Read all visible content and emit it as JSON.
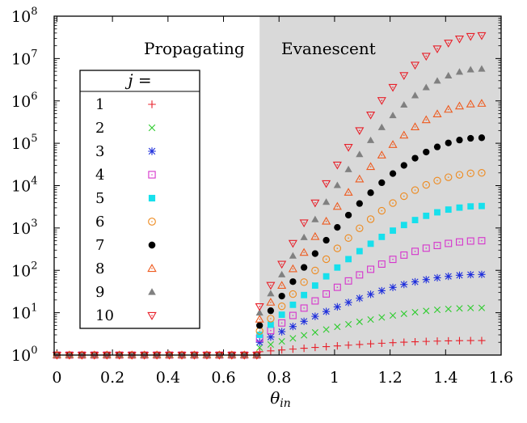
{
  "chart_data": {
    "type": "scatter",
    "title": "",
    "xlabel": "θin",
    "xlabel_main": "θ",
    "xlabel_sub": "in",
    "ylabel": "",
    "xlim": [
      -0.01,
      1.6
    ],
    "ylim_log10": [
      0,
      8
    ],
    "yscale": "log",
    "x_ticks": [
      "0",
      "0.2",
      "0.4",
      "0.6",
      "0.8",
      "1",
      "1.2",
      "1.4",
      "1.6"
    ],
    "y_ticks": [
      {
        "base": "10",
        "exp": "0"
      },
      {
        "base": "10",
        "exp": "1"
      },
      {
        "base": "10",
        "exp": "2"
      },
      {
        "base": "10",
        "exp": "3"
      },
      {
        "base": "10",
        "exp": "4"
      },
      {
        "base": "10",
        "exp": "5"
      },
      {
        "base": "10",
        "exp": "6"
      },
      {
        "base": "10",
        "exp": "7"
      },
      {
        "base": "10",
        "exp": "8"
      }
    ],
    "region_boundary_x": 0.73,
    "regions": [
      {
        "label": "Propagating",
        "fill": "#ffffff"
      },
      {
        "label": "Evanescent",
        "fill": "#d9d9d9"
      }
    ],
    "legend": {
      "title": "j =",
      "title_main": "j",
      "title_rest": " =",
      "placement": "left"
    },
    "propagating_x": [
      0.0,
      0.045,
      0.09,
      0.135,
      0.18,
      0.225,
      0.27,
      0.315,
      0.36,
      0.405,
      0.45,
      0.495,
      0.54,
      0.585,
      0.63,
      0.675,
      0.72
    ],
    "propagating_y": 1,
    "evanescent_x": [
      0.73,
      0.77,
      0.81,
      0.85,
      0.89,
      0.93,
      0.97,
      1.01,
      1.05,
      1.09,
      1.13,
      1.17,
      1.21,
      1.25,
      1.29,
      1.33,
      1.37,
      1.41,
      1.45,
      1.49,
      1.53
    ],
    "series": [
      {
        "name": "1",
        "marker": "plus",
        "color": "#e8202a",
        "jump_value": 1.2,
        "max_value": 2.2
      },
      {
        "name": "2",
        "marker": "cross",
        "color": "#2ecc2e",
        "jump_value": 1.5,
        "max_value": 13
      },
      {
        "name": "3",
        "marker": "star",
        "color": "#1f2fdc",
        "jump_value": 2.0,
        "max_value": 80
      },
      {
        "name": "4",
        "marker": "open-square",
        "color": "#d633cc",
        "jump_value": 2.5,
        "max_value": 500
      },
      {
        "name": "5",
        "marker": "filled-square",
        "color": "#17e0ec",
        "jump_value": 3.0,
        "max_value": 3300
      },
      {
        "name": "6",
        "marker": "open-circle",
        "color": "#ee8a1e",
        "jump_value": 3.7,
        "max_value": 20000
      },
      {
        "name": "7",
        "marker": "filled-circle",
        "color": "#000000",
        "jump_value": 5.0,
        "max_value": 135000
      },
      {
        "name": "8",
        "marker": "open-triangle",
        "color": "#ee5a1e",
        "jump_value": 7.0,
        "max_value": 870000
      },
      {
        "name": "9",
        "marker": "filled-triangle",
        "color": "#808080",
        "jump_value": 10.0,
        "max_value": 5700000
      },
      {
        "name": "10",
        "marker": "open-inverted-triangle",
        "color": "#e8202a",
        "jump_value": 14.0,
        "max_value": 35000000
      }
    ]
  }
}
